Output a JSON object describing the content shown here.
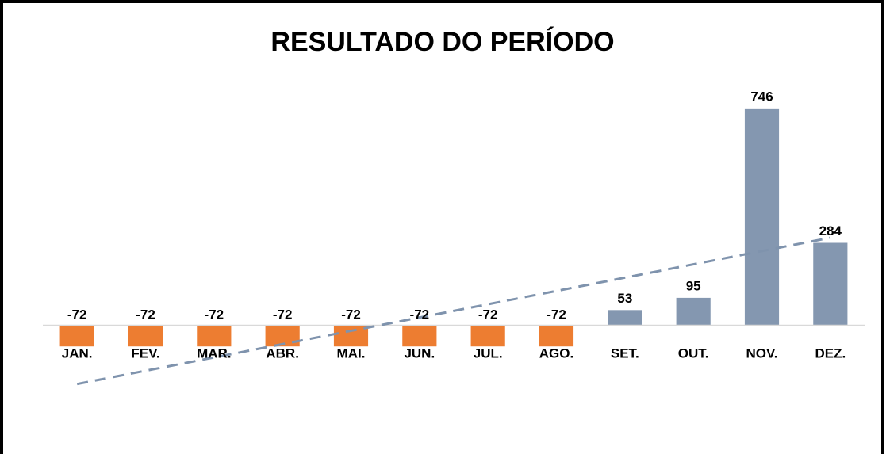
{
  "chart_data": {
    "type": "bar",
    "title": "RESULTADO DO PERÍODO",
    "categories": [
      "JAN.",
      "FEV.",
      "MAR.",
      "ABR.",
      "MAI.",
      "JUN.",
      "JUL.",
      "AGO.",
      "SET.",
      "OUT.",
      "NOV.",
      "DEZ."
    ],
    "values": [
      -72,
      -72,
      -72,
      -72,
      -72,
      -72,
      -72,
      -72,
      53,
      95,
      746,
      284
    ],
    "color": "#8497b0",
    "negative_color": "#ed7d31",
    "trendline": "linear",
    "trendline_color": "#7f93ad",
    "ylim": [
      -420,
      860
    ]
  }
}
